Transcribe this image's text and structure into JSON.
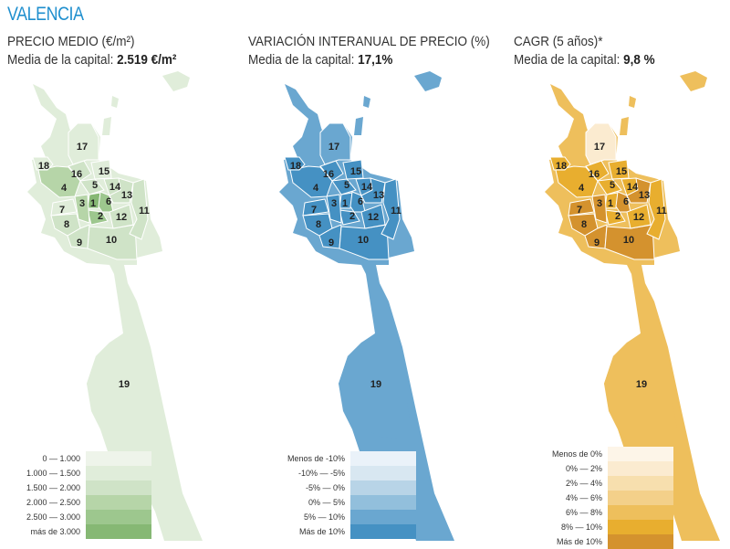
{
  "title": "VALENCIA",
  "panels": [
    {
      "heading": "PRECIO MEDIO (€/m²)",
      "avg_label": "Media de la capital: ",
      "avg_value": "2.519 €/m²",
      "legend": [
        {
          "label": "0 — 1.000",
          "color": "#eef4ea"
        },
        {
          "label": "1.000 — 1.500",
          "color": "#e0edda"
        },
        {
          "label": "1.500 — 2.000",
          "color": "#cfe3c7"
        },
        {
          "label": "2.000 — 2.500",
          "color": "#b6d5a8"
        },
        {
          "label": "2.500 — 3.000",
          "color": "#9dc78e"
        },
        {
          "label": "más de 3.000",
          "color": "#86b874"
        }
      ],
      "district_levels": {
        "1": 5,
        "2": 4,
        "3": 3,
        "4": 3,
        "5": 2,
        "6": 4,
        "7": 1,
        "8": 2,
        "9": 2,
        "10": 2,
        "11": 2,
        "12": 2,
        "13": 2,
        "14": 2,
        "15": 1,
        "16": 2,
        "17": 1,
        "18": 1,
        "19": 1
      }
    },
    {
      "heading": "VARIACIÓN INTERANUAL DE PRECIO (%)",
      "avg_label": "Media de la capital: ",
      "avg_value": "17,1%",
      "legend": [
        {
          "label": "Menos de -10%",
          "color": "#eaf2f9"
        },
        {
          "label": "-10% — -5%",
          "color": "#d8e7f1"
        },
        {
          "label": "-5% — 0%",
          "color": "#b8d4e7"
        },
        {
          "label": "0% — 5%",
          "color": "#92bfdc"
        },
        {
          "label": "5% — 10%",
          "color": "#6aa7d0"
        },
        {
          "label": "Más de 10%",
          "color": "#4591c3"
        }
      ],
      "district_levels": {
        "1": 5,
        "2": 5,
        "3": 5,
        "4": 5,
        "5": 5,
        "6": 5,
        "7": 5,
        "8": 5,
        "9": 5,
        "10": 5,
        "11": 5,
        "12": 5,
        "13": 5,
        "14": 5,
        "15": 5,
        "16": 5,
        "17": 4,
        "18": 5,
        "19": 4
      }
    },
    {
      "heading": "CAGR (5 años)*",
      "avg_label": "Media de la capital: ",
      "avg_value": "9,8 %",
      "legend": [
        {
          "label": "Menos de 0%",
          "color": "#fdf5e8"
        },
        {
          "label": "0% — 2%",
          "color": "#fbebd0"
        },
        {
          "label": "2% — 4%",
          "color": "#f7dfae"
        },
        {
          "label": "4% — 6%",
          "color": "#f3d08a"
        },
        {
          "label": "6% — 8%",
          "color": "#eebf5c"
        },
        {
          "label": "8% — 10%",
          "color": "#e8ae2f"
        },
        {
          "label": "Más de 10%",
          "color": "#d4922e"
        }
      ],
      "district_levels": {
        "1": 5,
        "2": 5,
        "3": 6,
        "4": 5,
        "5": 5,
        "6": 6,
        "7": 6,
        "8": 6,
        "9": 6,
        "10": 6,
        "11": 5,
        "12": 5,
        "13": 6,
        "14": 5,
        "15": 5,
        "16": 5,
        "17": 1,
        "18": 5,
        "19": 4
      }
    }
  ]
}
